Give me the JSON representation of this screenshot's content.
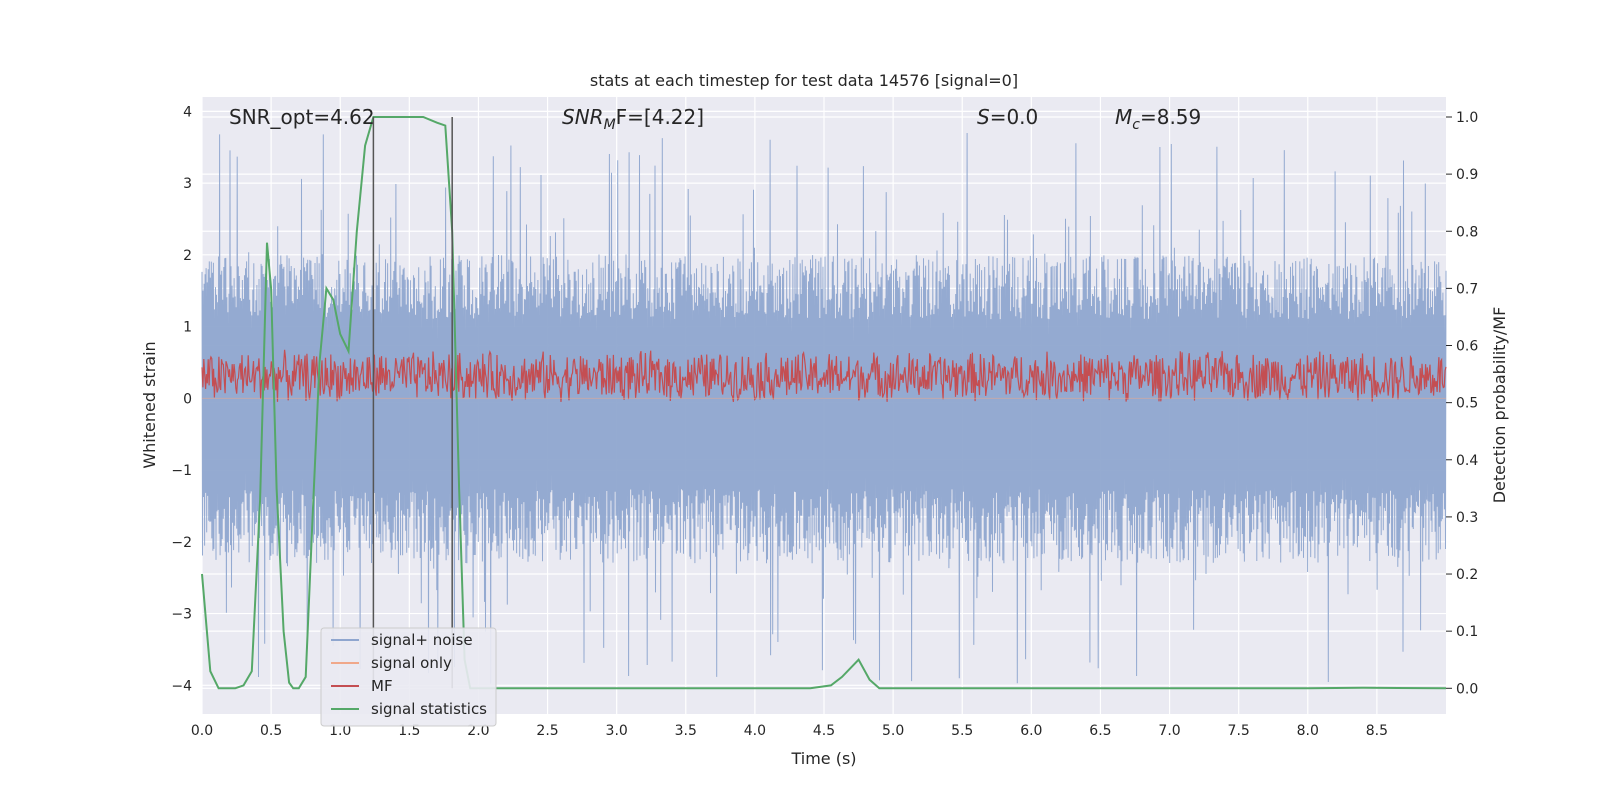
{
  "chart_data": {
    "type": "line",
    "title": "stats at each timestep for test data 14576 [signal=0]",
    "xlabel": "Time (s)",
    "ylabel_left": "Whitened strain",
    "ylabel_right": "Detection probability/MF",
    "xlim": [
      0.0,
      9.0
    ],
    "ylim_left": [
      -4.4,
      4.2
    ],
    "ylim_right": [
      -0.045,
      1.035
    ],
    "x_ticks": [
      "0.0",
      "0.5",
      "1.0",
      "1.5",
      "2.0",
      "2.5",
      "3.0",
      "3.5",
      "4.0",
      "4.5",
      "5.0",
      "5.5",
      "6.0",
      "6.5",
      "7.0",
      "7.5",
      "8.0",
      "8.5"
    ],
    "y_ticks_left": [
      "4",
      "3",
      "2",
      "1",
      "0",
      "−1",
      "−2",
      "−3",
      "−4"
    ],
    "y_ticks_right": [
      "1.0",
      "0.9",
      "0.8",
      "0.7",
      "0.6",
      "0.5",
      "0.4",
      "0.3",
      "0.2",
      "0.1",
      "0.0"
    ],
    "annotations": {
      "snr_opt": "SNR_opt=4.62",
      "snr_mf_base": "SNR",
      "snr_mf_sub": "M",
      "snr_mf_rest": "F=[4.22]",
      "s_base": "S",
      "s_rest": "=0.0",
      "mc_base": "M",
      "mc_sub": "c",
      "mc_rest": "=8.59"
    },
    "markers_x": [
      1.24,
      1.81
    ],
    "noise_envelope": {
      "upper_typical": 2.0,
      "lower_typical": -2.3,
      "peak_max": 3.7,
      "trough_min": -4.0
    },
    "series": [
      {
        "name": "signal+ noise",
        "color": "#8fa6cf",
        "axis": "left",
        "description": "whitened strain noise"
      },
      {
        "name": "signal only",
        "color": "#f0a88a",
        "axis": "left",
        "x": [
          0.0,
          9.0
        ],
        "y": [
          0.0,
          0.0
        ]
      },
      {
        "name": "MF",
        "color": "#c44e52",
        "axis": "left",
        "range": [
          -0.05,
          0.7
        ]
      },
      {
        "name": "signal statistics",
        "color": "#55a868",
        "axis": "right",
        "x": [
          0.0,
          0.06,
          0.12,
          0.18,
          0.24,
          0.3,
          0.36,
          0.42,
          0.47,
          0.5,
          0.54,
          0.59,
          0.63,
          0.66,
          0.7,
          0.75,
          0.8,
          0.85,
          0.9,
          0.95,
          1.0,
          1.06,
          1.12,
          1.18,
          1.24,
          1.29,
          1.34,
          1.38,
          1.43,
          1.5,
          1.6,
          1.7,
          1.76,
          1.81,
          1.86,
          1.9,
          1.94,
          2.0,
          2.1,
          3.0,
          4.0,
          4.4,
          4.55,
          4.63,
          4.75,
          4.83,
          4.9,
          5.0,
          6.0,
          7.0,
          8.0,
          8.4,
          9.0
        ],
        "y": [
          0.2,
          0.03,
          0.0,
          0.0,
          0.0,
          0.005,
          0.03,
          0.33,
          0.78,
          0.7,
          0.35,
          0.1,
          0.01,
          0.0,
          0.0,
          0.02,
          0.3,
          0.57,
          0.7,
          0.68,
          0.62,
          0.59,
          0.8,
          0.95,
          1.0,
          1.0,
          1.0,
          1.0,
          1.0,
          1.0,
          1.0,
          0.99,
          0.985,
          0.8,
          0.35,
          0.05,
          0.0,
          0.0,
          0.0,
          0.0,
          0.0,
          0.0,
          0.005,
          0.02,
          0.05,
          0.015,
          0.0,
          0.0,
          0.0,
          0.0,
          0.0,
          0.001,
          0.0
        ]
      }
    ],
    "legend": [
      "signal+ noise",
      "signal only",
      "MF",
      "signal statistics"
    ],
    "legend_location": "lower-left"
  }
}
